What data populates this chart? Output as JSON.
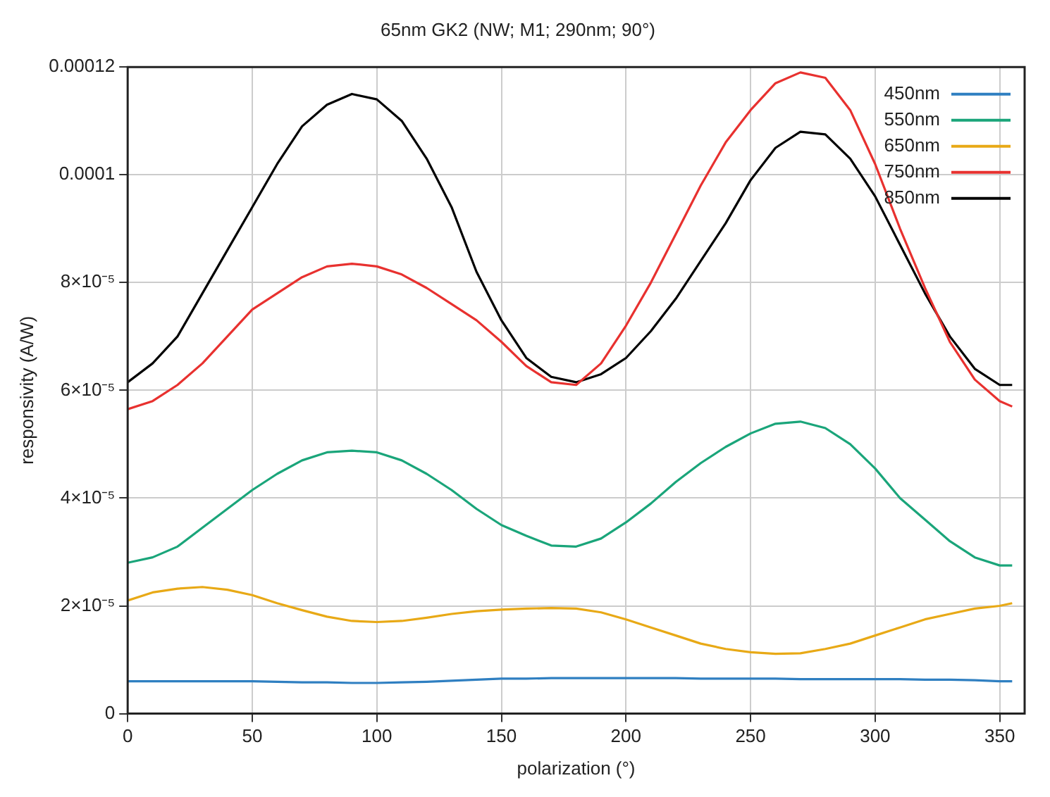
{
  "chart_data": {
    "type": "line",
    "title": "65nm GK2 (NW; M1; 290nm; 90°)",
    "xlabel": "polarization (°)",
    "ylabel": "responsivity (A/W)",
    "xlim": [
      0,
      360
    ],
    "xticks": [
      0,
      50,
      100,
      150,
      200,
      250,
      300,
      350
    ],
    "ylim": [
      0,
      0.00012
    ],
    "yticks": [
      0,
      {
        "value": 2e-05,
        "label": "2×10⁻⁵"
      },
      {
        "value": 4e-05,
        "label": "4×10⁻⁵"
      },
      {
        "value": 6e-05,
        "label": "6×10⁻⁵"
      },
      {
        "value": 8e-05,
        "label": "8×10⁻⁵"
      },
      0.0001,
      0.00012
    ],
    "grid": true,
    "legend": "top right",
    "marker": "none",
    "line_style": "solid",
    "x": [
      0,
      10,
      20,
      30,
      40,
      50,
      60,
      70,
      80,
      90,
      100,
      110,
      120,
      130,
      140,
      150,
      160,
      170,
      180,
      190,
      200,
      210,
      220,
      230,
      240,
      250,
      260,
      270,
      280,
      290,
      300,
      310,
      320,
      330,
      340,
      350,
      355
    ],
    "series": [
      {
        "name": "450nm",
        "color": "#2f7fc1",
        "values": [
          6e-06,
          6e-06,
          6e-06,
          6e-06,
          6e-06,
          6e-06,
          5.9e-06,
          5.8e-06,
          5.8e-06,
          5.7e-06,
          5.7e-06,
          5.8e-06,
          5.9e-06,
          6.1e-06,
          6.3e-06,
          6.5e-06,
          6.5e-06,
          6.6e-06,
          6.6e-06,
          6.6e-06,
          6.6e-06,
          6.6e-06,
          6.6e-06,
          6.5e-06,
          6.5e-06,
          6.5e-06,
          6.5e-06,
          6.4e-06,
          6.4e-06,
          6.4e-06,
          6.4e-06,
          6.4e-06,
          6.3e-06,
          6.3e-06,
          6.2e-06,
          6e-06,
          6e-06
        ]
      },
      {
        "name": "550nm",
        "color": "#1aa57a",
        "values": [
          2.8e-05,
          2.9e-05,
          3.1e-05,
          3.45e-05,
          3.8e-05,
          4.15e-05,
          4.45e-05,
          4.7e-05,
          4.85e-05,
          4.88e-05,
          4.85e-05,
          4.7e-05,
          4.45e-05,
          4.15e-05,
          3.8e-05,
          3.5e-05,
          3.3e-05,
          3.12e-05,
          3.1e-05,
          3.25e-05,
          3.55e-05,
          3.9e-05,
          4.3e-05,
          4.65e-05,
          4.95e-05,
          5.2e-05,
          5.38e-05,
          5.42e-05,
          5.3e-05,
          5e-05,
          4.55e-05,
          4e-05,
          3.6e-05,
          3.2e-05,
          2.9e-05,
          2.75e-05,
          2.75e-05
        ]
      },
      {
        "name": "650nm",
        "color": "#e8a916",
        "values": [
          2.1e-05,
          2.25e-05,
          2.32e-05,
          2.35e-05,
          2.3e-05,
          2.2e-05,
          2.05e-05,
          1.92e-05,
          1.8e-05,
          1.72e-05,
          1.7e-05,
          1.72e-05,
          1.78e-05,
          1.85e-05,
          1.9e-05,
          1.93e-05,
          1.95e-05,
          1.96e-05,
          1.95e-05,
          1.88e-05,
          1.75e-05,
          1.6e-05,
          1.45e-05,
          1.3e-05,
          1.2e-05,
          1.14e-05,
          1.11e-05,
          1.12e-05,
          1.2e-05,
          1.3e-05,
          1.45e-05,
          1.6e-05,
          1.75e-05,
          1.85e-05,
          1.95e-05,
          2e-05,
          2.05e-05
        ]
      },
      {
        "name": "750nm",
        "color": "#e8312f",
        "values": [
          5.65e-05,
          5.8e-05,
          6.1e-05,
          6.5e-05,
          7e-05,
          7.5e-05,
          7.8e-05,
          8.1e-05,
          8.3e-05,
          8.35e-05,
          8.3e-05,
          8.15e-05,
          7.9e-05,
          7.6e-05,
          7.3e-05,
          6.9e-05,
          6.45e-05,
          6.15e-05,
          6.1e-05,
          6.5e-05,
          7.2e-05,
          8e-05,
          8.9e-05,
          9.8e-05,
          0.000106,
          0.000112,
          0.000117,
          0.000119,
          0.000118,
          0.000112,
          0.000102,
          9e-05,
          7.9e-05,
          6.9e-05,
          6.2e-05,
          5.8e-05,
          5.7e-05
        ]
      },
      {
        "name": "850nm",
        "color": "#000000",
        "values": [
          6.15e-05,
          6.5e-05,
          7e-05,
          7.8e-05,
          8.6e-05,
          9.4e-05,
          0.000102,
          0.000109,
          0.000113,
          0.000115,
          0.000114,
          0.00011,
          0.000103,
          9.4e-05,
          8.2e-05,
          7.3e-05,
          6.6e-05,
          6.25e-05,
          6.15e-05,
          6.3e-05,
          6.6e-05,
          7.1e-05,
          7.7e-05,
          8.4e-05,
          9.1e-05,
          9.9e-05,
          0.000105,
          0.000108,
          0.0001075,
          0.000103,
          9.6e-05,
          8.7e-05,
          7.8e-05,
          7e-05,
          6.4e-05,
          6.1e-05,
          6.1e-05
        ]
      }
    ]
  }
}
